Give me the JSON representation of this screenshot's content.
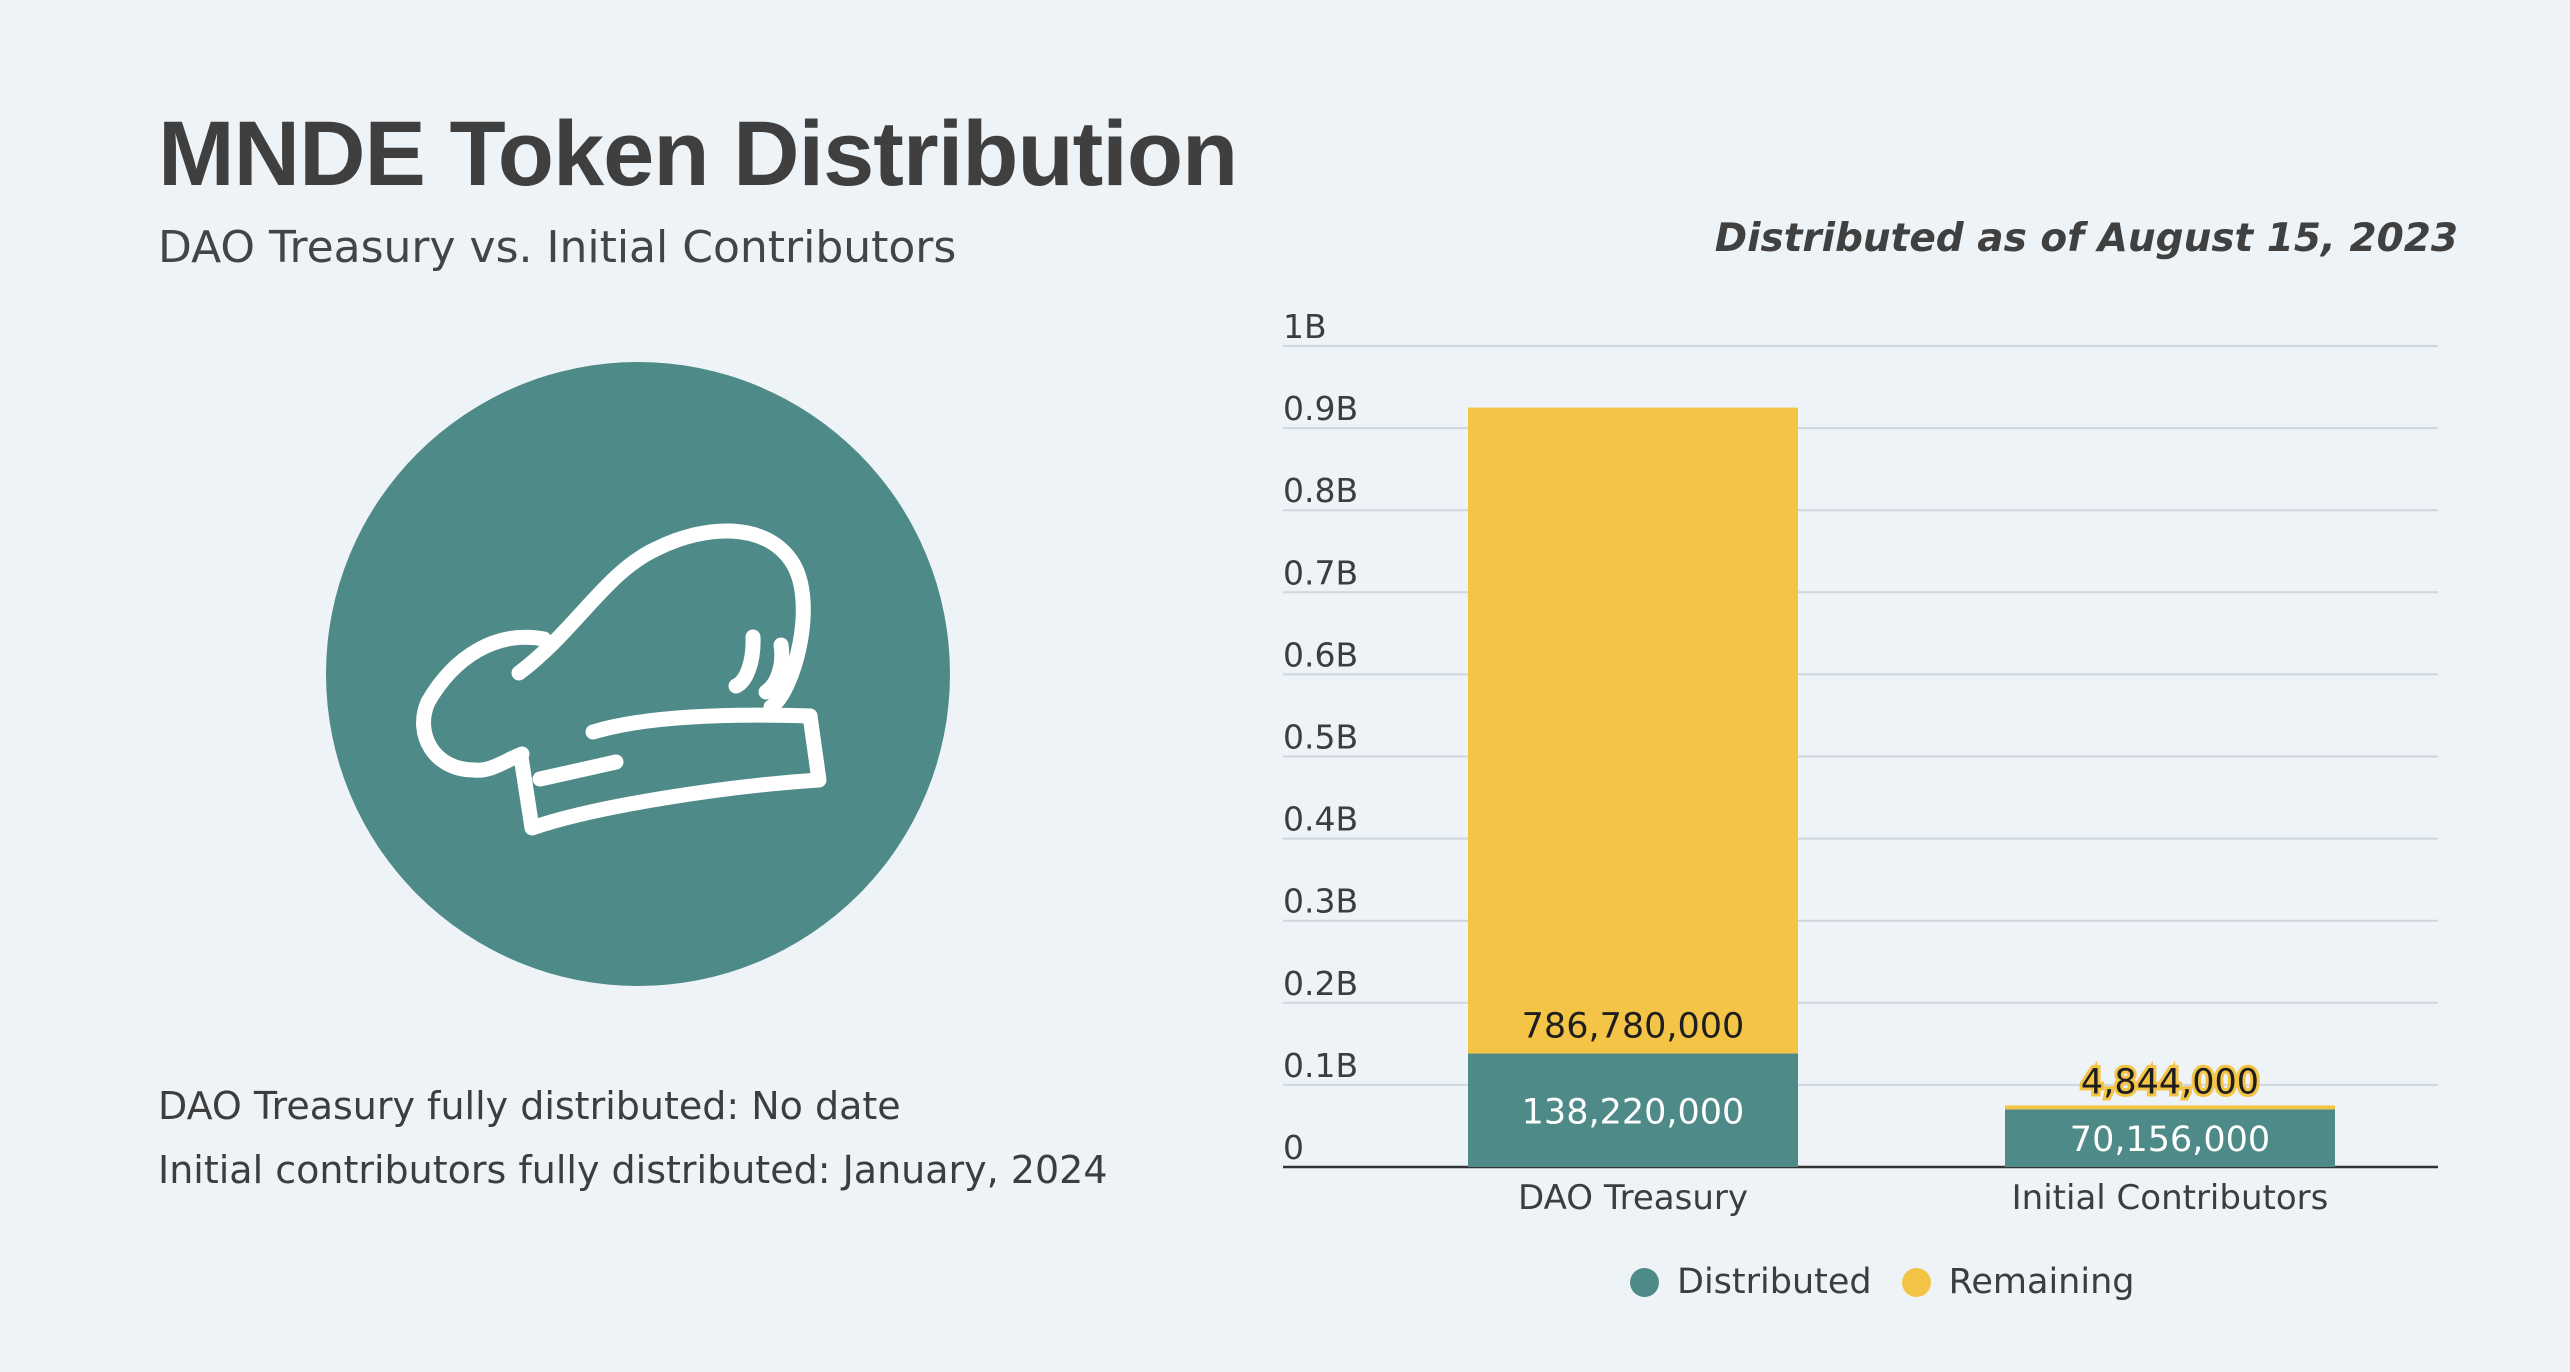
{
  "header": {
    "title": "MNDE Token Distribution",
    "subtitle": "DAO Treasury vs. Initial Contributors",
    "as_of": "Distributed as of August 15, 2023"
  },
  "notes": {
    "dao_treasury": "DAO Treasury fully distributed: No date",
    "initial_contributors": "Initial contributors fully distributed: January, 2024"
  },
  "logo": {
    "icon": "chef-hat-icon",
    "circle_color": "#4e8a88"
  },
  "colors": {
    "distributed": "#4e8a88",
    "remaining": "#f4c447",
    "grid": "#cfd6dc",
    "axis": "#333333"
  },
  "chart_data": {
    "type": "bar",
    "stacked": true,
    "categories": [
      "DAO Treasury",
      "Initial Contributors"
    ],
    "series": [
      {
        "name": "Distributed",
        "values": [
          138220000,
          70156000
        ],
        "labels": [
          "138,220,000",
          "70,156,000"
        ]
      },
      {
        "name": "Remaining",
        "values": [
          786780000,
          4844000
        ],
        "labels": [
          "786,780,000",
          "4,844,000"
        ]
      }
    ],
    "ylim": [
      0,
      1000000000
    ],
    "yticks": [
      {
        "value": 0,
        "label": "0"
      },
      {
        "value": 100000000,
        "label": "0.1B"
      },
      {
        "value": 200000000,
        "label": "0.2B"
      },
      {
        "value": 300000000,
        "label": "0.3B"
      },
      {
        "value": 400000000,
        "label": "0.4B"
      },
      {
        "value": 500000000,
        "label": "0.5B"
      },
      {
        "value": 600000000,
        "label": "0.6B"
      },
      {
        "value": 700000000,
        "label": "0.7B"
      },
      {
        "value": 800000000,
        "label": "0.8B"
      },
      {
        "value": 900000000,
        "label": "0.9B"
      },
      {
        "value": 1000000000,
        "label": "1B"
      }
    ],
    "grid": true,
    "legend": "bottom"
  }
}
